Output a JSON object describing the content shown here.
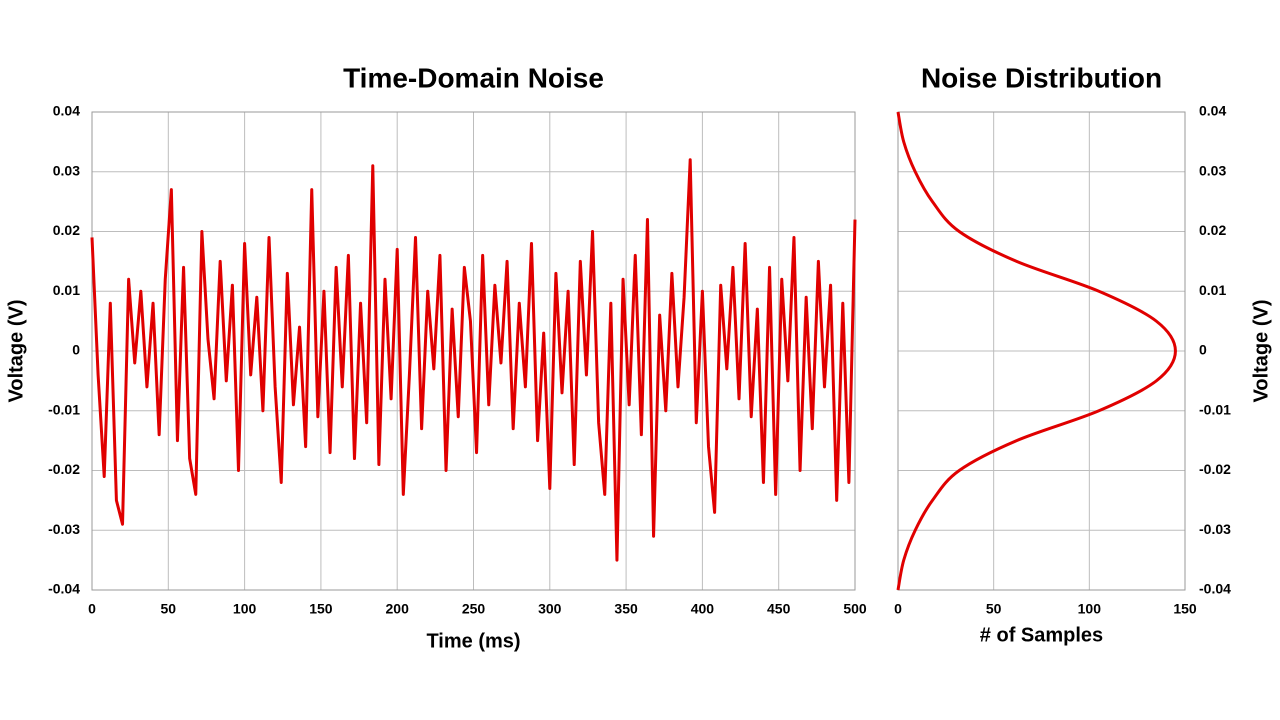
{
  "chart_data": [
    {
      "type": "line",
      "title": "Time-Domain Noise",
      "xlabel": "Time (ms)",
      "ylabel": "Voltage (V)",
      "orientation": "vertical",
      "y_axis_side": "left",
      "grid": true,
      "color": "#e00000",
      "xlim": [
        0,
        500
      ],
      "xticks": [
        0,
        50,
        100,
        150,
        200,
        250,
        300,
        350,
        400,
        450,
        500
      ],
      "ylim": [
        -0.04,
        0.04
      ],
      "yticks": [
        -0.04,
        -0.03,
        -0.02,
        -0.01,
        0,
        0.01,
        0.02,
        0.03,
        0.04
      ],
      "x": [
        0,
        4,
        8,
        12,
        16,
        20,
        24,
        28,
        32,
        36,
        40,
        44,
        48,
        52,
        56,
        60,
        64,
        68,
        72,
        76,
        80,
        84,
        88,
        92,
        96,
        100,
        104,
        108,
        112,
        116,
        120,
        124,
        128,
        132,
        136,
        140,
        144,
        148,
        152,
        156,
        160,
        164,
        168,
        172,
        176,
        180,
        184,
        188,
        192,
        196,
        200,
        204,
        208,
        212,
        216,
        220,
        224,
        228,
        232,
        236,
        240,
        244,
        248,
        252,
        256,
        260,
        264,
        268,
        272,
        276,
        280,
        284,
        288,
        292,
        296,
        300,
        304,
        308,
        312,
        316,
        320,
        324,
        328,
        332,
        336,
        340,
        344,
        348,
        352,
        356,
        360,
        364,
        368,
        372,
        376,
        380,
        384,
        388,
        392,
        396,
        400,
        404,
        408,
        412,
        416,
        420,
        424,
        428,
        432,
        436,
        440,
        444,
        448,
        452,
        456,
        460,
        464,
        468,
        472,
        476,
        480,
        484,
        488,
        492,
        496,
        500
      ],
      "values": [
        0.019,
        -0.004,
        -0.021,
        0.008,
        -0.025,
        -0.029,
        0.012,
        -0.002,
        0.01,
        -0.006,
        0.008,
        -0.014,
        0.012,
        0.027,
        -0.015,
        0.014,
        -0.018,
        -0.024,
        0.02,
        0.002,
        -0.008,
        0.015,
        -0.005,
        0.011,
        -0.02,
        0.018,
        -0.004,
        0.009,
        -0.01,
        0.019,
        -0.006,
        -0.022,
        0.013,
        -0.009,
        0.004,
        -0.016,
        0.027,
        -0.011,
        0.01,
        -0.017,
        0.014,
        -0.006,
        0.016,
        -0.018,
        0.008,
        -0.012,
        0.031,
        -0.019,
        0.012,
        -0.008,
        0.017,
        -0.024,
        -0.004,
        0.019,
        -0.013,
        0.01,
        -0.003,
        0.016,
        -0.02,
        0.007,
        -0.011,
        0.014,
        0.005,
        -0.017,
        0.016,
        -0.009,
        0.011,
        -0.002,
        0.015,
        -0.013,
        0.008,
        -0.006,
        0.018,
        -0.015,
        0.003,
        -0.023,
        0.013,
        -0.007,
        0.01,
        -0.019,
        0.015,
        -0.004,
        0.02,
        -0.012,
        -0.024,
        0.008,
        -0.035,
        0.012,
        -0.009,
        0.016,
        -0.014,
        0.022,
        -0.031,
        0.006,
        -0.01,
        0.013,
        -0.006,
        0.009,
        0.032,
        -0.012,
        0.01,
        -0.016,
        -0.027,
        0.011,
        -0.003,
        0.014,
        -0.008,
        0.018,
        -0.011,
        0.007,
        -0.022,
        0.014,
        -0.024,
        0.012,
        -0.005,
        0.019,
        -0.02,
        0.009,
        -0.013,
        0.015,
        -0.006,
        0.011,
        -0.025,
        0.008,
        -0.022,
        0.022
      ]
    },
    {
      "type": "line",
      "title": "Noise Distribution",
      "xlabel": "# of Samples",
      "ylabel": "Voltage (V)",
      "orientation": "horizontal",
      "y_axis_side": "right",
      "grid": true,
      "color": "#e00000",
      "xlim": [
        0,
        150
      ],
      "xticks": [
        0,
        50,
        100,
        150
      ],
      "ylim": [
        -0.04,
        0.04
      ],
      "yticks": [
        -0.04,
        -0.03,
        -0.02,
        -0.01,
        0,
        0.01,
        0.02,
        0.03,
        0.04
      ],
      "x": [
        -0.04,
        -0.035,
        -0.03,
        -0.025,
        -0.02,
        -0.015,
        -0.01,
        -0.005,
        0,
        0.005,
        0.01,
        0.015,
        0.02,
        0.025,
        0.03,
        0.035,
        0.04
      ],
      "values": [
        0,
        3,
        9,
        18,
        32,
        62,
        105,
        135,
        145,
        135,
        105,
        62,
        32,
        18,
        9,
        3,
        0
      ]
    }
  ]
}
